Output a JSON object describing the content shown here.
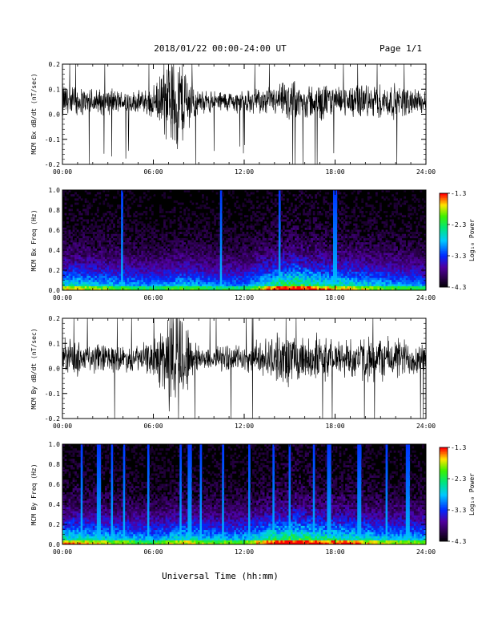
{
  "header": {
    "title": "2018/01/22  00:00-24:00 UT",
    "page": "Page 1/1"
  },
  "footer": {
    "xlabel": "Universal Time (hh:mm)"
  },
  "colorbar": {
    "label": "Log₁₀ Power",
    "ticks": [
      "-1.3",
      "-2.3",
      "-3.3",
      "-4.3"
    ],
    "range": [
      -4.3,
      -1.3
    ]
  },
  "chart_data": [
    {
      "type": "line",
      "ylabel": "MCM Bx dB/dt (nT/sec)",
      "xlim": [
        "00:00",
        "24:00"
      ],
      "ylim": [
        -0.2,
        0.2
      ],
      "x_ticks": [
        "00:00",
        "06:00",
        "12:00",
        "18:00",
        "24:00"
      ],
      "y_ticks": [
        "0.2",
        "0.1",
        "0.0",
        "-0.1",
        "-0.2"
      ],
      "series": [
        {
          "baseline": 0.05,
          "envelope_hours": [
            0,
            1,
            2,
            3,
            4,
            5,
            6,
            6.5,
            7,
            7.5,
            8,
            8.5,
            9,
            10,
            12,
            14,
            15,
            16,
            17,
            18,
            20,
            22,
            24
          ],
          "envelope_amplitude": [
            0.09,
            0.07,
            0.06,
            0.06,
            0.05,
            0.05,
            0.07,
            0.12,
            0.2,
            0.25,
            0.2,
            0.1,
            0.05,
            0.05,
            0.05,
            0.07,
            0.1,
            0.08,
            0.09,
            0.07,
            0.08,
            0.08,
            0.05
          ]
        }
      ]
    },
    {
      "type": "heatmap",
      "ylabel": "MCM Bx Freq (Hz)",
      "xlim": [
        "00:00",
        "24:00"
      ],
      "ylim": [
        0.0,
        1.0
      ],
      "x_ticks": [
        "00:00",
        "06:00",
        "12:00",
        "18:00",
        "24:00"
      ],
      "y_ticks": [
        "1.0",
        "0.8",
        "0.6",
        "0.4",
        "0.2",
        "0.0"
      ],
      "zlim": [
        -4.3,
        -1.3
      ],
      "spike_hours": [
        3.9,
        10.5,
        14.3,
        18.0
      ],
      "activity_hours": [
        0,
        3,
        6,
        8,
        10,
        12,
        14,
        15.5,
        17,
        19,
        21,
        24
      ],
      "activity_level": [
        0.8,
        0.7,
        0.6,
        0.7,
        0.6,
        0.6,
        0.9,
        1.0,
        0.85,
        0.8,
        0.7,
        0.6
      ]
    },
    {
      "type": "line",
      "ylabel": "MCM By dB/dt (nT/sec)",
      "xlim": [
        "00:00",
        "24:00"
      ],
      "ylim": [
        -0.2,
        0.2
      ],
      "x_ticks": [
        "00:00",
        "06:00",
        "12:00",
        "18:00",
        "24:00"
      ],
      "y_ticks": [
        "0.2",
        "0.1",
        "0.0",
        "-0.1",
        "-0.2"
      ],
      "series": [
        {
          "baseline": 0.04,
          "envelope_hours": [
            0,
            1,
            2,
            3,
            4,
            5,
            6,
            6.5,
            7,
            7.5,
            8,
            8.5,
            9,
            10,
            12,
            14,
            15,
            16,
            17,
            18,
            20,
            22,
            24
          ],
          "envelope_amplitude": [
            0.09,
            0.08,
            0.07,
            0.07,
            0.06,
            0.06,
            0.08,
            0.15,
            0.25,
            0.28,
            0.22,
            0.1,
            0.06,
            0.06,
            0.06,
            0.1,
            0.13,
            0.1,
            0.11,
            0.09,
            0.1,
            0.1,
            0.07
          ]
        }
      ]
    },
    {
      "type": "heatmap",
      "ylabel": "MCM By Freq (Hz)",
      "xlim": [
        "00:00",
        "24:00"
      ],
      "ylim": [
        0.0,
        1.0
      ],
      "x_ticks": [
        "00:00",
        "06:00",
        "12:00",
        "18:00",
        "24:00"
      ],
      "y_ticks": [
        "1.0",
        "0.8",
        "0.6",
        "0.4",
        "0.2",
        "0.0"
      ],
      "zlim": [
        -4.3,
        -1.3
      ],
      "spike_hours": [
        1.3,
        2.4,
        3.3,
        4.1,
        5.7,
        7.8,
        8.4,
        9.1,
        10.6,
        12.3,
        13.9,
        15.0,
        16.6,
        17.6,
        19.6,
        21.4,
        22.8
      ],
      "activity_hours": [
        0,
        3,
        6,
        8,
        10,
        12,
        14,
        15.5,
        17,
        19,
        21,
        24
      ],
      "activity_level": [
        0.85,
        0.75,
        0.65,
        0.8,
        0.7,
        0.7,
        0.95,
        1.0,
        0.9,
        0.85,
        0.75,
        0.7
      ]
    }
  ]
}
